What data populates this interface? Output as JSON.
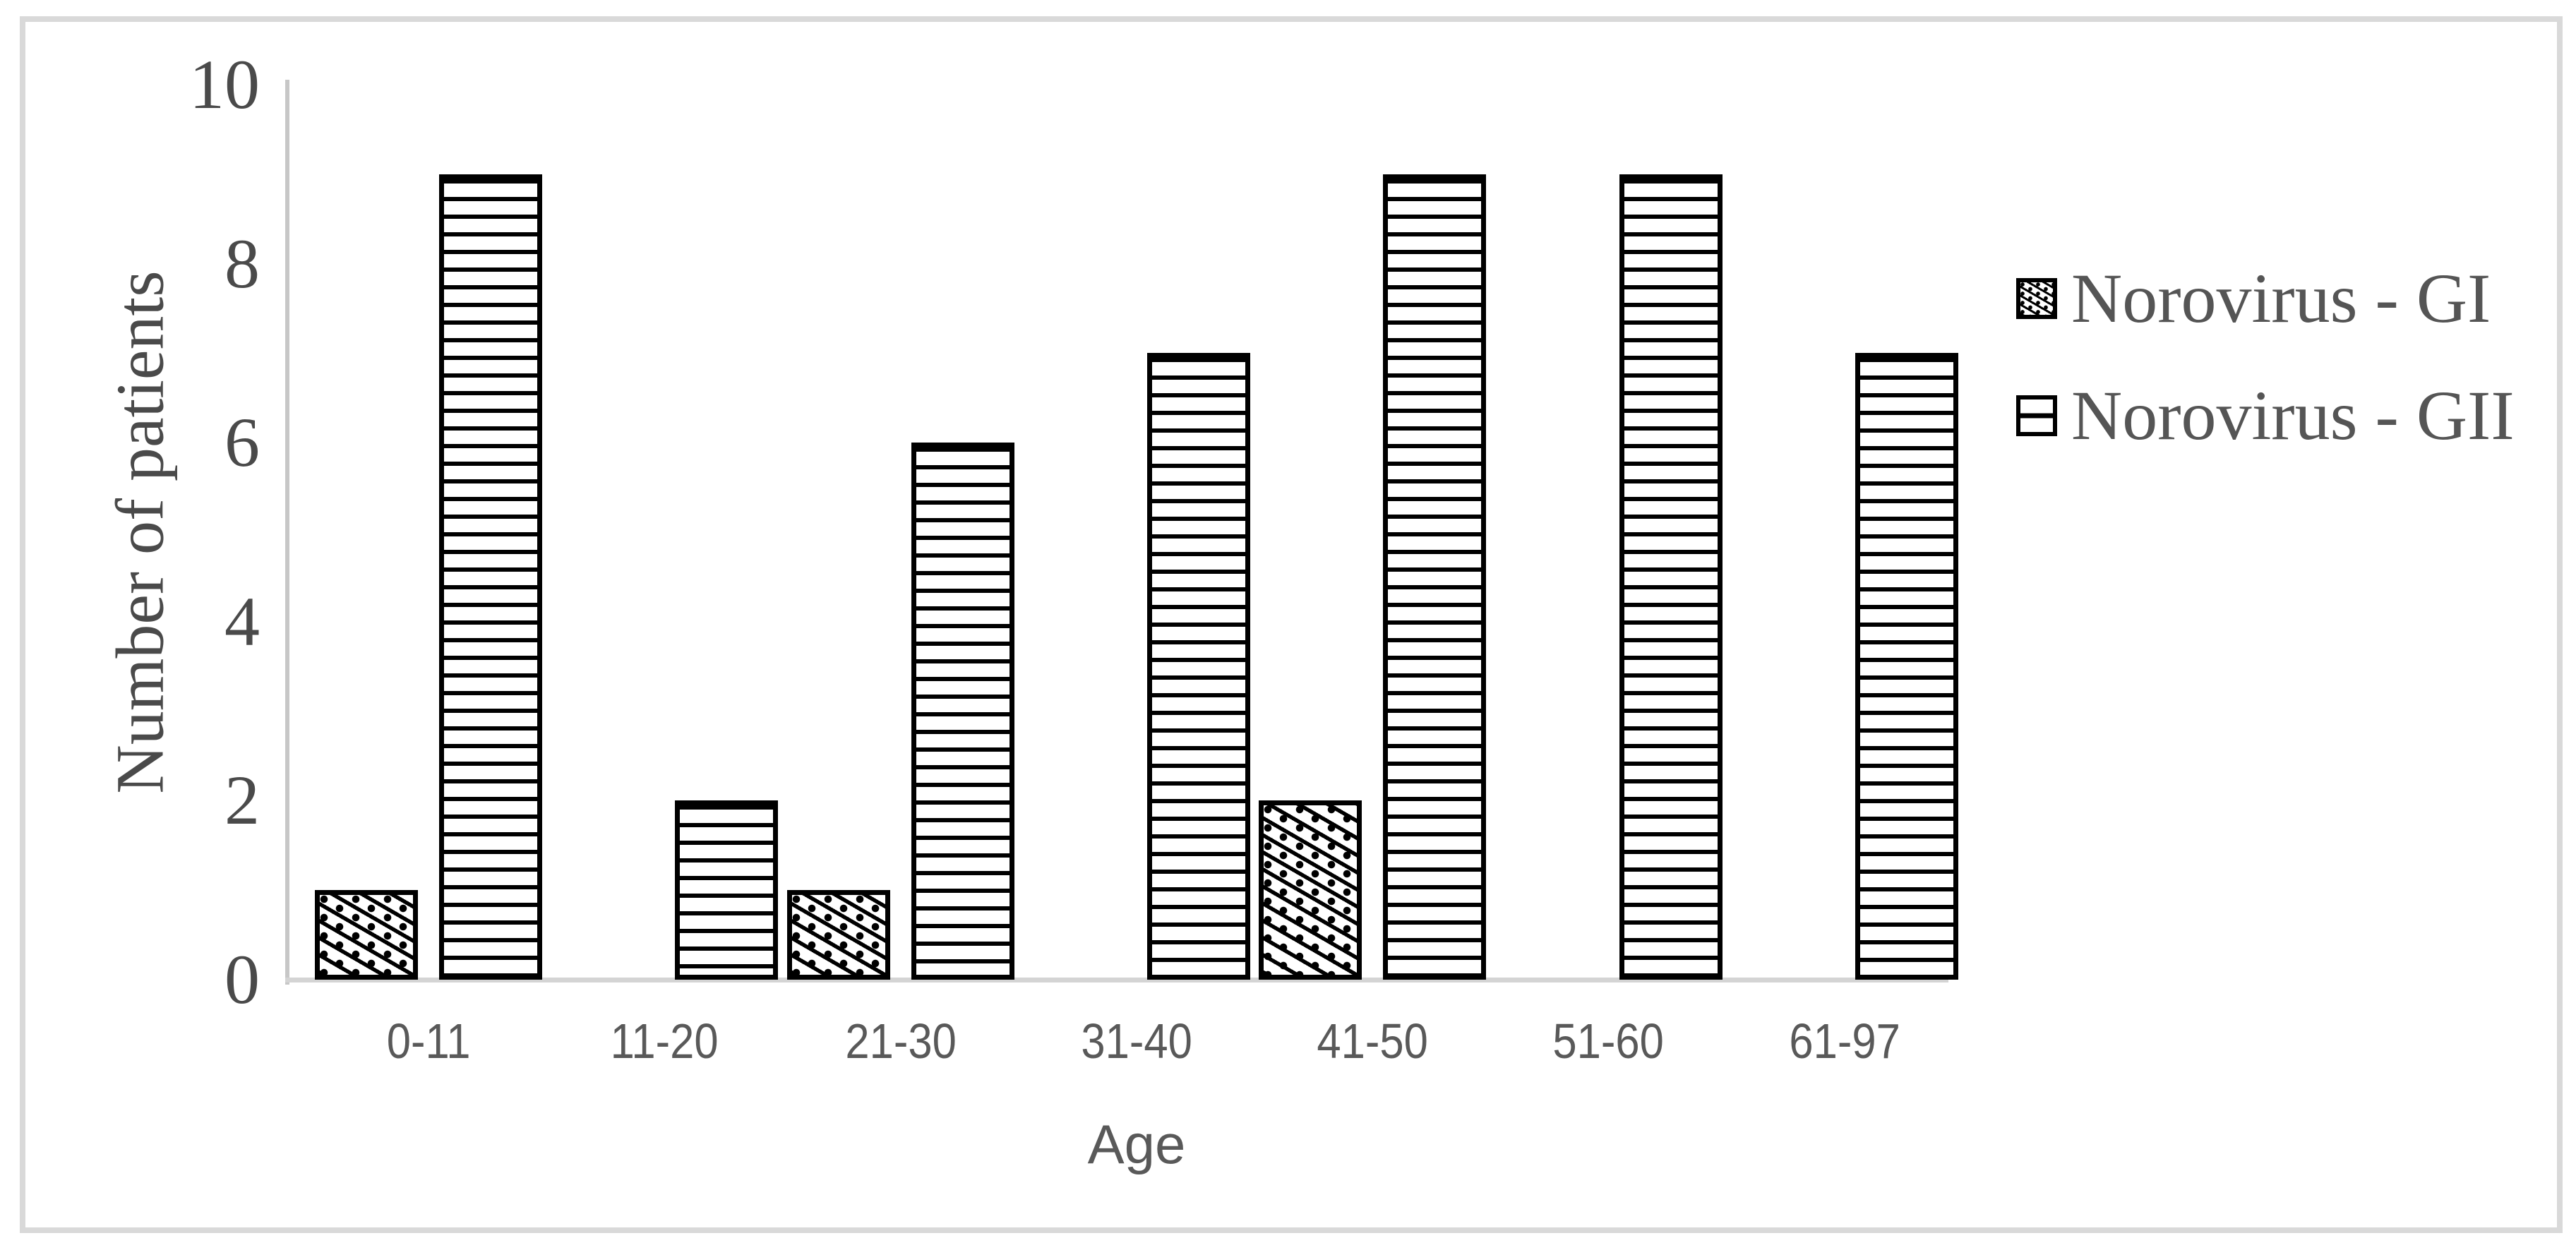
{
  "figure": {
    "background": "#ffffff",
    "frame_border_color": "#d9d9d9"
  },
  "chart_data": {
    "type": "bar",
    "title": "",
    "categories": [
      "0-11",
      "11-20",
      "21-30",
      "31-40",
      "41-50",
      "51-60",
      "61-97"
    ],
    "series": [
      {
        "name": "Norovirus - GI",
        "pattern": "diagonal-hatch",
        "values": [
          1,
          0,
          1,
          0,
          2,
          0,
          0
        ]
      },
      {
        "name": "Norovirus - GII",
        "pattern": "horizontal-lines",
        "values": [
          9,
          2,
          6,
          7,
          9,
          9,
          7
        ]
      }
    ],
    "xlabel": "Age",
    "ylabel": "Number of patients",
    "ylim": [
      0,
      10
    ],
    "yticks": [
      0,
      2,
      4,
      6,
      8,
      10
    ],
    "grid": false,
    "legend_position": "right",
    "colors": {
      "bar_outline": "#000000",
      "bar_fill": "#ffffff",
      "axis_line": "#c7c7c7",
      "tick_text": "#4a4a4a",
      "category_text": "#595959",
      "legend_text": "#555555"
    }
  }
}
